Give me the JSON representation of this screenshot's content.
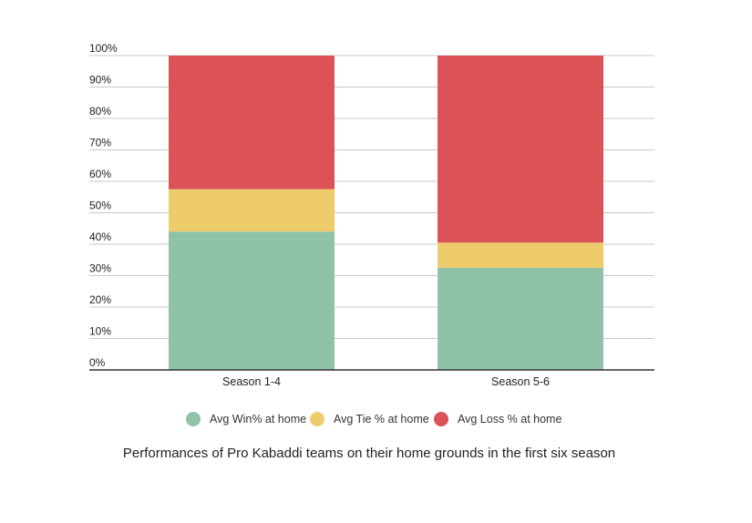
{
  "chart_data": {
    "type": "bar",
    "stacked": true,
    "categories": [
      "Season 1-4",
      "Season 5-6"
    ],
    "series": [
      {
        "name": "Avg Win% at home",
        "values": [
          44,
          32.5
        ],
        "color": "#8ec3a7"
      },
      {
        "name": "Avg Tie % at home",
        "values": [
          13.5,
          8
        ],
        "color": "#efcc6b"
      },
      {
        "name": "Avg Loss % at home",
        "values": [
          42.5,
          59.5
        ],
        "color": "#dc5357"
      }
    ],
    "ylim": [
      0,
      100
    ],
    "yticks": [
      "0%",
      "10%",
      "20%",
      "30%",
      "40%",
      "50%",
      "60%",
      "70%",
      "80%",
      "90%",
      "100%"
    ],
    "xlabel": "",
    "ylabel": "",
    "grid": true,
    "legend_position": "bottom",
    "caption": "Performances of Pro Kabaddi teams on their home grounds in the first six season"
  }
}
